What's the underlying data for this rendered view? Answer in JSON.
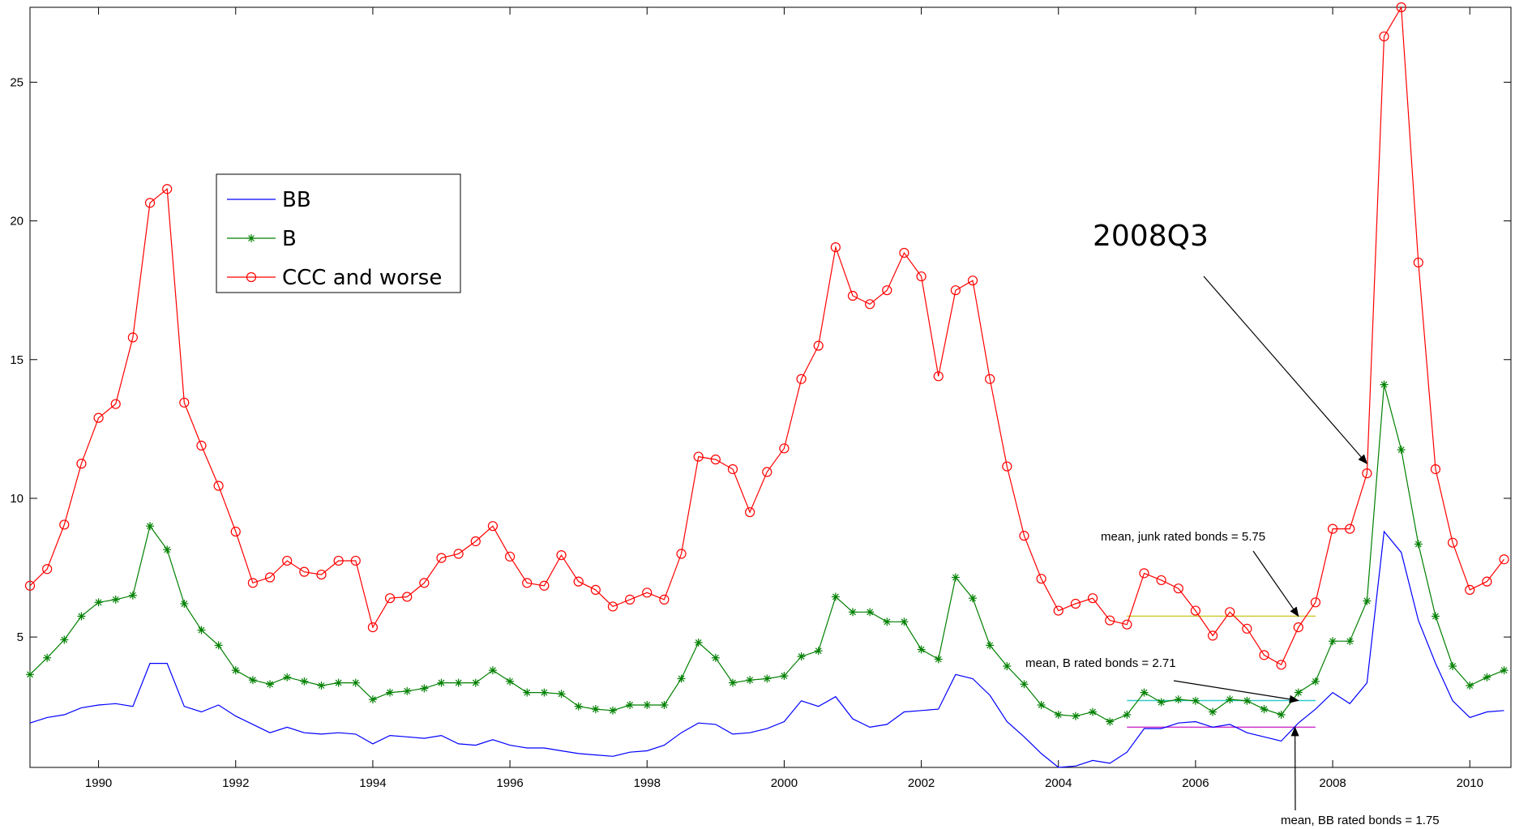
{
  "chart_data": {
    "type": "line",
    "title": "",
    "xlabel": "",
    "ylabel": "",
    "xlim": [
      1989.0,
      2010.6
    ],
    "ylim": [
      0.3,
      27.7
    ],
    "x_ticks": [
      1990,
      1992,
      1994,
      1996,
      1998,
      2000,
      2002,
      2004,
      2006,
      2008,
      2010
    ],
    "y_ticks": [
      5,
      10,
      15,
      20,
      25
    ],
    "grid": false,
    "legend_position": "upper-left",
    "x": [
      1989.0,
      1989.25,
      1989.5,
      1989.75,
      1990.0,
      1990.25,
      1990.5,
      1990.75,
      1991.0,
      1991.25,
      1991.5,
      1991.75,
      1992.0,
      1992.25,
      1992.5,
      1992.75,
      1993.0,
      1993.25,
      1993.5,
      1993.75,
      1994.0,
      1994.25,
      1994.5,
      1994.75,
      1995.0,
      1995.25,
      1995.5,
      1995.75,
      1996.0,
      1996.25,
      1996.5,
      1996.75,
      1997.0,
      1997.25,
      1997.5,
      1997.75,
      1998.0,
      1998.25,
      1998.5,
      1998.75,
      1999.0,
      1999.25,
      1999.5,
      1999.75,
      2000.0,
      2000.25,
      2000.5,
      2000.75,
      2001.0,
      2001.25,
      2001.5,
      2001.75,
      2002.0,
      2002.25,
      2002.5,
      2002.75,
      2003.0,
      2003.25,
      2003.5,
      2003.75,
      2004.0,
      2004.25,
      2004.5,
      2004.75,
      2005.0,
      2005.25,
      2005.5,
      2005.75,
      2006.0,
      2006.25,
      2006.5,
      2006.75,
      2007.0,
      2007.25,
      2007.5,
      2007.75,
      2008.0,
      2008.25,
      2008.5,
      2008.75,
      2009.0,
      2009.25,
      2009.5,
      2009.75,
      2010.0,
      2010.25,
      2010.5
    ],
    "series": [
      {
        "name": "BB",
        "color": "#0000ff",
        "marker": "none",
        "values": [
          1.9,
          2.1,
          2.2,
          2.45,
          2.55,
          2.6,
          2.5,
          4.05,
          4.05,
          2.5,
          2.3,
          2.55,
          2.15,
          1.85,
          1.55,
          1.75,
          1.55,
          1.5,
          1.55,
          1.5,
          1.15,
          1.45,
          1.4,
          1.35,
          1.45,
          1.15,
          1.1,
          1.3,
          1.1,
          1.0,
          1.0,
          0.9,
          0.8,
          0.75,
          0.7,
          0.85,
          0.9,
          1.1,
          1.55,
          1.9,
          1.85,
          1.5,
          1.55,
          1.7,
          1.95,
          2.7,
          2.5,
          2.85,
          2.05,
          1.75,
          1.85,
          2.3,
          2.35,
          2.4,
          3.65,
          3.5,
          2.9,
          1.95,
          1.4,
          0.8,
          0.3,
          0.35,
          0.55,
          0.45,
          0.85,
          1.7,
          1.7,
          1.9,
          1.95,
          1.75,
          1.85,
          1.55,
          1.4,
          1.25,
          1.9,
          2.4,
          3.0,
          2.6,
          3.35,
          8.8,
          8.05,
          5.6,
          4.05,
          2.7,
          2.1,
          2.3,
          2.35
        ]
      },
      {
        "name": "B",
        "color": "#008000",
        "marker": "asterisk",
        "values": [
          3.65,
          4.25,
          4.9,
          5.75,
          6.25,
          6.35,
          6.5,
          9.0,
          8.15,
          6.2,
          5.25,
          4.7,
          3.8,
          3.45,
          3.3,
          3.55,
          3.4,
          3.25,
          3.35,
          3.35,
          2.75,
          3.0,
          3.05,
          3.15,
          3.35,
          3.35,
          3.35,
          3.8,
          3.4,
          3.0,
          3.0,
          2.95,
          2.5,
          2.4,
          2.35,
          2.55,
          2.55,
          2.55,
          3.5,
          4.8,
          4.25,
          3.35,
          3.45,
          3.5,
          3.6,
          4.3,
          4.5,
          6.45,
          5.9,
          5.9,
          5.55,
          5.55,
          4.55,
          4.2,
          7.15,
          6.4,
          4.7,
          3.95,
          3.3,
          2.55,
          2.2,
          2.15,
          2.3,
          1.95,
          2.2,
          3.0,
          2.65,
          2.75,
          2.7,
          2.3,
          2.75,
          2.7,
          2.4,
          2.2,
          3.0,
          3.4,
          4.85,
          4.85,
          6.3,
          14.1,
          11.75,
          8.35,
          5.75,
          3.95,
          3.25,
          3.55,
          3.8
        ]
      },
      {
        "name": "CCC and worse",
        "color": "#ff0000",
        "marker": "circle",
        "values": [
          6.85,
          7.45,
          9.05,
          11.25,
          12.9,
          13.4,
          15.8,
          20.65,
          21.15,
          13.45,
          11.9,
          10.45,
          8.8,
          6.95,
          7.15,
          7.75,
          7.35,
          7.25,
          7.75,
          7.75,
          5.35,
          6.4,
          6.45,
          6.95,
          7.85,
          8.0,
          8.45,
          9.0,
          7.9,
          6.95,
          6.85,
          7.95,
          7.0,
          6.7,
          6.1,
          6.35,
          6.6,
          6.35,
          8.0,
          11.5,
          11.4,
          11.05,
          9.5,
          10.95,
          11.8,
          14.3,
          15.5,
          19.05,
          17.3,
          17.0,
          17.5,
          18.85,
          18.0,
          14.4,
          17.5,
          17.85,
          14.3,
          11.15,
          8.65,
          7.1,
          5.95,
          6.2,
          6.4,
          5.6,
          5.45,
          7.3,
          7.05,
          6.75,
          5.95,
          5.05,
          5.9,
          5.3,
          4.35,
          4.0,
          5.35,
          6.25,
          8.9,
          8.9,
          10.9,
          26.65,
          27.7,
          18.5,
          11.05,
          8.4,
          6.7,
          7.0,
          7.8
        ]
      }
    ],
    "mean_lines": [
      {
        "label": "mean, junk rated bonds = 5.75",
        "value": 5.75,
        "x_range": [
          2005.0,
          2007.75
        ],
        "color": "#cccc33"
      },
      {
        "label": "mean, B rated bonds = 2.71",
        "value": 2.71,
        "x_range": [
          2005.0,
          2007.75
        ],
        "color": "#33cccc"
      },
      {
        "label": "mean, BB rated bonds = 1.75",
        "value": 1.75,
        "x_range": [
          2005.0,
          2007.75
        ],
        "color": "#cc33cc"
      }
    ],
    "annotations": [
      {
        "text": "2008Q3",
        "points_to": [
          2008.5,
          10.9
        ]
      },
      {
        "text": "mean, junk rated bonds = 5.75",
        "points_to": [
          2007.5,
          5.75
        ]
      },
      {
        "text": "mean, B rated bonds = 2.71",
        "points_to": [
          2007.5,
          2.71
        ]
      },
      {
        "text": "mean, BB rated bonds = 1.75",
        "points_to": [
          2007.45,
          1.75
        ]
      }
    ]
  }
}
